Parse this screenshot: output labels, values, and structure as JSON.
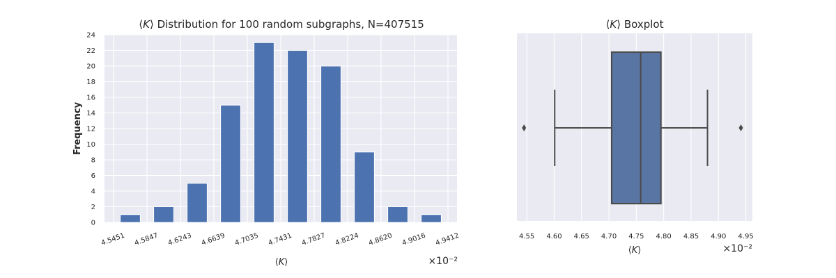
{
  "chart_data": [
    {
      "type": "bar",
      "title_parts": [
        "⟨",
        "K",
        "⟩ Distribution for 100 random subgraphs, N=407515"
      ],
      "xlabel_parts": [
        "⟨",
        "K",
        "⟩"
      ],
      "ylabel": "Frequency",
      "x_offset_text": "×10⁻²",
      "x_tick_labels": [
        "4.5451",
        "4.5847",
        "4.6243",
        "4.6639",
        "4.7035",
        "4.7431",
        "4.7827",
        "4.8224",
        "4.8620",
        "4.9016",
        "4.9412"
      ],
      "values": [
        1,
        2,
        5,
        15,
        23,
        22,
        20,
        9,
        2,
        1
      ],
      "ylim": [
        0,
        24
      ],
      "y_ticks": [
        0,
        2,
        4,
        6,
        8,
        10,
        12,
        14,
        16,
        18,
        20,
        22,
        24
      ],
      "color": "#4c72b0",
      "background": "#eaeaf2",
      "grid": true
    },
    {
      "type": "boxplot",
      "title_parts": [
        "⟨",
        "K",
        "⟩ Boxplot"
      ],
      "xlabel_parts": [
        "⟨",
        "K",
        "⟩"
      ],
      "x_offset_text": "×10⁻²",
      "xlim": [
        4.532,
        4.962
      ],
      "x_ticks": [
        4.55,
        4.6,
        4.65,
        4.7,
        4.75,
        4.8,
        4.85,
        4.9,
        4.95
      ],
      "x_tick_labels": [
        "4.55",
        "4.60",
        "4.65",
        "4.70",
        "4.75",
        "4.80",
        "4.85",
        "4.90",
        "4.95"
      ],
      "whisker_low": 4.601,
      "q1": 4.705,
      "median": 4.758,
      "q3": 4.795,
      "whisker_high": 4.88,
      "outliers": [
        4.545,
        4.941
      ],
      "color": "#5975a4",
      "line_color": "#4a4a4a",
      "background": "#eaeaf2",
      "grid": true
    }
  ]
}
